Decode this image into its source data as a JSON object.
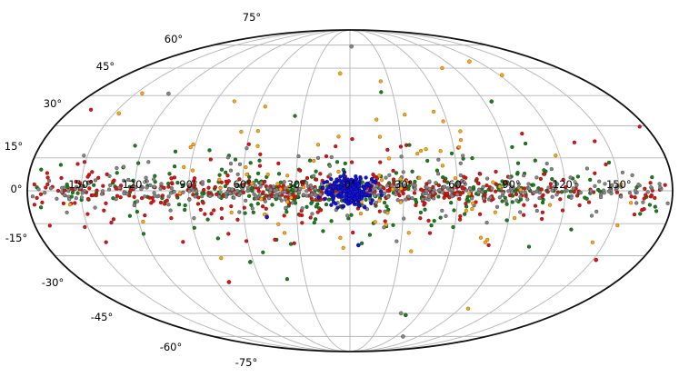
{
  "figure": {
    "background": "#ffffff",
    "border_color": "#111111",
    "grid_color": "#b5b5b5",
    "label_color": "#000000"
  },
  "chart_data": {
    "type": "scatter",
    "projection": "mollweide",
    "title": "",
    "xlabel": "",
    "ylabel": "",
    "lon_range": [
      -180,
      180
    ],
    "lat_range": [
      -90,
      90
    ],
    "grid": true,
    "grid_lon_step_deg": 30,
    "grid_lat_step_deg": 15,
    "lat_tick_values": [
      75,
      60,
      45,
      30,
      15,
      0,
      -15,
      -30,
      -45,
      -60,
      -75
    ],
    "lat_tick_labels": [
      "75°",
      "60°",
      "45°",
      "30°",
      "15°",
      "0°",
      "-15°",
      "-30°",
      "-45°",
      "-60°",
      "-75°"
    ],
    "lon_tick_values": [
      -150,
      -120,
      -90,
      -60,
      -30,
      0,
      30,
      60,
      90,
      120,
      150
    ],
    "lon_tick_labels": [
      "150°",
      "120°",
      "90°",
      "60°",
      "30°",
      "0°",
      "30°",
      "60°",
      "90°",
      "120°",
      "150°"
    ],
    "legend": false,
    "series": [
      {
        "name": "green-population",
        "color": "#1e7e1e",
        "edge": "#0c4a0c",
        "seed": 101,
        "n": 390,
        "lon": {
          "uniform_frac": 0.3,
          "uniform_range": 178,
          "tri_halfwidth": 165
        },
        "lat": {
          "components": [
            {
              "frac": 0.45,
              "sigma": 3
            },
            {
              "frac": 0.35,
              "sigma": 7
            },
            {
              "frac": 0.2,
              "sigma": 15
            }
          ],
          "clip": 62
        }
      },
      {
        "name": "red-population",
        "color": "#e01212",
        "edge": "#7f1010",
        "seed": 202,
        "n": 430,
        "lon": {
          "uniform_frac": 0.55,
          "uniform_range": 178,
          "tri_halfwidth": 178
        },
        "lat": {
          "components": [
            {
              "frac": 0.5,
              "sigma": 2.5
            },
            {
              "frac": 0.3,
              "sigma": 6
            },
            {
              "frac": 0.2,
              "sigma": 14
            }
          ],
          "clip": 55
        }
      },
      {
        "name": "gray-population",
        "color": "#868686",
        "edge": "#4d4d4d",
        "seed": 303,
        "n": 400,
        "lon": {
          "uniform_frac": 0.55,
          "uniform_range": 178,
          "tri_halfwidth": 170
        },
        "lat": {
          "components": [
            {
              "frac": 0.6,
              "sigma": 2
            },
            {
              "frac": 0.25,
              "sigma": 5
            },
            {
              "frac": 0.15,
              "sigma": 12
            }
          ],
          "clip": 50
        }
      },
      {
        "name": "orange-population",
        "color": "#ffa418",
        "edge": "#9a6400",
        "seed": 404,
        "n": 95,
        "lon": {
          "uniform_frac": 0.25,
          "uniform_range": 160,
          "tri_halfwidth": 140
        },
        "lat": {
          "components": [
            {
              "frac": 0.6,
              "sigma": 12
            },
            {
              "frac": 0.4,
              "sigma": 25
            }
          ],
          "clip": 66
        }
      },
      {
        "name": "blue-bulge-population",
        "color": "#1414d2",
        "edge": "#00008b",
        "seed": 505,
        "n": 200,
        "lon": {
          "uniform_frac": 0.0,
          "uniform_range": 18,
          "tri_halfwidth": 0,
          "gauss_sigma": 7,
          "clip": 19
        },
        "lat": {
          "components": [
            {
              "frac": 0.85,
              "sigma": 3.5
            },
            {
              "frac": 0.15,
              "sigma": 7
            }
          ],
          "clip": 11
        }
      }
    ],
    "notable_points": [
      {
        "series": "gray-population",
        "lon": 2,
        "lat": 74
      },
      {
        "series": "gray-population",
        "lon": -127,
        "lat": 46
      },
      {
        "series": "gray-population",
        "lon": 44,
        "lat": -60
      },
      {
        "series": "green-population",
        "lon": 49,
        "lat": -61
      },
      {
        "series": "green-population",
        "lon": -62,
        "lat": -33
      },
      {
        "series": "green-population",
        "lon": 95,
        "lat": 42
      },
      {
        "series": "red-population",
        "lon": -82,
        "lat": -43
      },
      {
        "series": "red-population",
        "lon": 152,
        "lat": -32
      },
      {
        "series": "orange-population",
        "lon": -147,
        "lat": 36
      },
      {
        "series": "orange-population",
        "lon": 112,
        "lat": 64
      },
      {
        "series": "orange-population",
        "lon": 122,
        "lat": 56
      },
      {
        "series": "orange-population",
        "lon": -8,
        "lat": 57
      },
      {
        "series": "blue-bulge-population",
        "lon": 5,
        "lat": -25
      },
      {
        "series": "blue-bulge-population",
        "lon": -47,
        "lat": -12
      },
      {
        "series": "gray-population",
        "lon": 70,
        "lat": -75
      }
    ],
    "annotations": []
  }
}
